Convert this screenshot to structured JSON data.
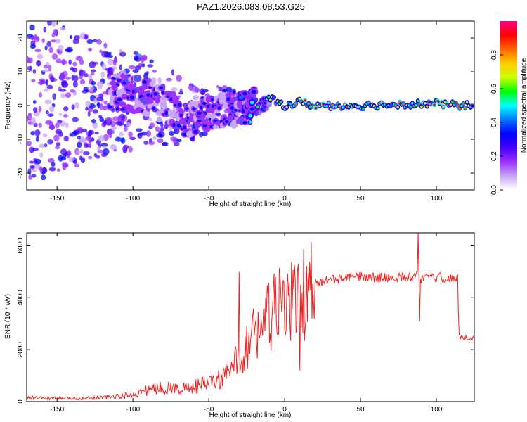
{
  "chart_data": [
    {
      "type": "heatmap",
      "title": "PAZ1.2026.083.08.53.G25",
      "xlabel": "Height of straight line (km)",
      "ylabel": "Frequency (Hz)",
      "xlim": [
        -170,
        125
      ],
      "ylim": [
        -25,
        25
      ],
      "xticks": [
        -150,
        -100,
        -50,
        0,
        50,
        100
      ],
      "yticks": [
        -20,
        -10,
        0,
        10,
        20
      ],
      "colorbar": {
        "label": "Normalized spectral amplitude",
        "range": [
          0,
          1
        ],
        "ticks": [
          "0.0",
          "0.2",
          "0.4",
          "0.6",
          "0.8"
        ],
        "colors": [
          "#ffffff",
          "#c7a6f5",
          "#9b30ff",
          "#4400ff",
          "#0000ff",
          "#0077ff",
          "#00ffff",
          "#00ff00",
          "#ccff00",
          "#ffcc00",
          "#ff6600",
          "#ff0000",
          "#ff0088"
        ]
      },
      "spectrum_ridge": [
        {
          "x": -110,
          "freq": 4,
          "amp": 0.3
        },
        {
          "x": -95,
          "freq": 3,
          "amp": 0.35
        },
        {
          "x": -80,
          "freq": 0,
          "amp": 0.3
        },
        {
          "x": -65,
          "freq": -4,
          "amp": 0.3
        },
        {
          "x": -50,
          "freq": -2,
          "amp": 0.3
        },
        {
          "x": -35,
          "freq": -1,
          "amp": 0.3
        },
        {
          "x": -20,
          "freq": 0,
          "amp": 0.45
        },
        {
          "x": -10,
          "freq": 2,
          "amp": 0.55
        },
        {
          "x": 0,
          "freq": 0,
          "amp": 0.7
        },
        {
          "x": 10,
          "freq": 1,
          "amp": 0.75
        },
        {
          "x": 20,
          "freq": 0,
          "amp": 0.9
        },
        {
          "x": 50,
          "freq": 0,
          "amp": 0.55
        },
        {
          "x": 85,
          "freq": 0.5,
          "amp": 0.8
        },
        {
          "x": 100,
          "freq": 0.5,
          "amp": 0.95
        },
        {
          "x": 115,
          "freq": 0,
          "amp": 0.85
        },
        {
          "x": 125,
          "freq": 0,
          "amp": 0.5
        }
      ]
    },
    {
      "type": "line",
      "xlabel": "Height of straight line (km)",
      "ylabel": "SNR (10 * v/v)",
      "xlim": [
        -170,
        125
      ],
      "ylim": [
        0,
        6500
      ],
      "xticks": [
        -150,
        -100,
        -50,
        0,
        50,
        100
      ],
      "yticks": [
        0,
        2000,
        4000,
        6000
      ],
      "color": "#ee2222",
      "x": [
        -170,
        -150,
        -130,
        -110,
        -100,
        -90,
        -80,
        -70,
        -60,
        -50,
        -40,
        -35,
        -30,
        -25,
        -20,
        -15,
        -10,
        -5,
        0,
        5,
        10,
        15,
        20,
        30,
        40,
        50,
        60,
        70,
        80,
        85,
        88,
        90,
        95,
        100,
        110,
        114,
        115,
        120,
        125
      ],
      "values": [
        150,
        120,
        130,
        200,
        250,
        450,
        550,
        500,
        550,
        700,
        900,
        1200,
        1800,
        2100,
        2600,
        3000,
        3300,
        3500,
        3700,
        3800,
        3900,
        4200,
        4500,
        4700,
        4750,
        4800,
        4780,
        4760,
        4780,
        4800,
        5000,
        4700,
        4750,
        4780,
        4750,
        4700,
        2500,
        2450,
        2450
      ],
      "spikes": [
        {
          "x": -30,
          "value": 5000
        },
        {
          "x": 9,
          "value": 5300
        },
        {
          "x": 88,
          "value": 6500
        },
        {
          "x": 89,
          "value": 3100
        },
        {
          "x": 10,
          "value": 1200
        }
      ]
    }
  ]
}
